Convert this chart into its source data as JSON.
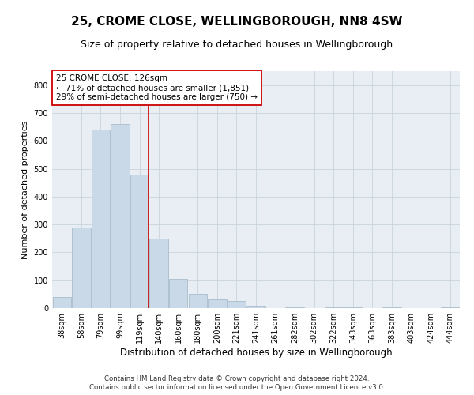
{
  "title": "25, CROME CLOSE, WELLINGBOROUGH, NN8 4SW",
  "subtitle": "Size of property relative to detached houses in Wellingborough",
  "xlabel": "Distribution of detached houses by size in Wellingborough",
  "ylabel": "Number of detached properties",
  "footnote1": "Contains HM Land Registry data © Crown copyright and database right 2024.",
  "footnote2": "Contains public sector information licensed under the Open Government Licence v3.0.",
  "annotation_line1": "25 CROME CLOSE: 126sqm",
  "annotation_line2": "← 71% of detached houses are smaller (1,851)",
  "annotation_line3": "29% of semi-detached houses are larger (750) →",
  "bar_color": "#c9d9e8",
  "bar_edge_color": "#a8bccb",
  "vline_color": "#cc0000",
  "vline_x_index": 4,
  "categories": [
    "38sqm",
    "58sqm",
    "79sqm",
    "99sqm",
    "119sqm",
    "140sqm",
    "160sqm",
    "180sqm",
    "200sqm",
    "221sqm",
    "241sqm",
    "261sqm",
    "282sqm",
    "302sqm",
    "322sqm",
    "343sqm",
    "363sqm",
    "383sqm",
    "403sqm",
    "424sqm",
    "444sqm"
  ],
  "values": [
    40,
    290,
    640,
    660,
    480,
    250,
    105,
    50,
    30,
    25,
    8,
    0,
    3,
    0,
    3,
    3,
    0,
    3,
    0,
    0,
    3
  ],
  "ylim": [
    0,
    850
  ],
  "yticks": [
    0,
    100,
    200,
    300,
    400,
    500,
    600,
    700,
    800
  ],
  "grid_color": "#c8d4de",
  "bg_color": "#e8eef4",
  "title_fontsize": 11,
  "subtitle_fontsize": 9,
  "ylabel_fontsize": 8,
  "xlabel_fontsize": 8.5,
  "tick_fontsize": 7,
  "annotation_fontsize": 7.5,
  "footnote_fontsize": 6.2
}
